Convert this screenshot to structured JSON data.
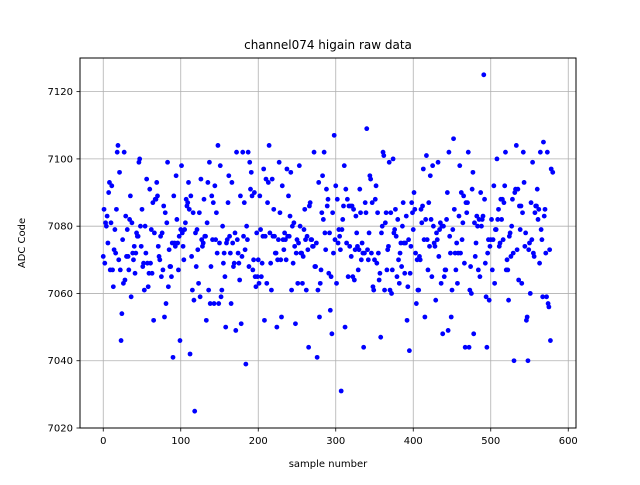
{
  "chart_data": {
    "type": "scatter",
    "title": "channel074 higain raw data",
    "xlabel": "sample number",
    "ylabel": "ADC Code",
    "xlim": [
      -30,
      610
    ],
    "ylim": [
      7020,
      7130
    ],
    "xticks": [
      "0",
      "100",
      "200",
      "300",
      "400",
      "500",
      "600"
    ],
    "yticks": [
      "7020",
      "7040",
      "7060",
      "7080",
      "7100",
      "7120"
    ],
    "grid": true,
    "marker_color": "#0000ff",
    "n_points": 580,
    "seed": 74,
    "mean": 7075,
    "spread": 13,
    "highlights": [
      {
        "x": 491,
        "y": 7125
      },
      {
        "x": 118,
        "y": 7025
      },
      {
        "x": 307,
        "y": 7031
      },
      {
        "x": 184,
        "y": 7039
      },
      {
        "x": 298,
        "y": 7110
      },
      {
        "x": 298,
        "y": 7107
      },
      {
        "x": 340,
        "y": 7109
      },
      {
        "x": 452,
        "y": 7106
      },
      {
        "x": 568,
        "y": 7105
      },
      {
        "x": 19,
        "y": 7104
      },
      {
        "x": 148,
        "y": 7104
      },
      {
        "x": 214,
        "y": 7104
      },
      {
        "x": 533,
        "y": 7104
      },
      {
        "x": 276,
        "y": 7041
      },
      {
        "x": 90,
        "y": 7041
      },
      {
        "x": 508,
        "y": 7100
      },
      {
        "x": 395,
        "y": 7043
      },
      {
        "x": 530,
        "y": 7040
      },
      {
        "x": 548,
        "y": 7040
      },
      {
        "x": 577,
        "y": 7046
      },
      {
        "x": 495,
        "y": 7044
      },
      {
        "x": 112,
        "y": 7042
      },
      {
        "x": 1,
        "y": 7085
      },
      {
        "x": 580,
        "y": 7096
      }
    ]
  }
}
